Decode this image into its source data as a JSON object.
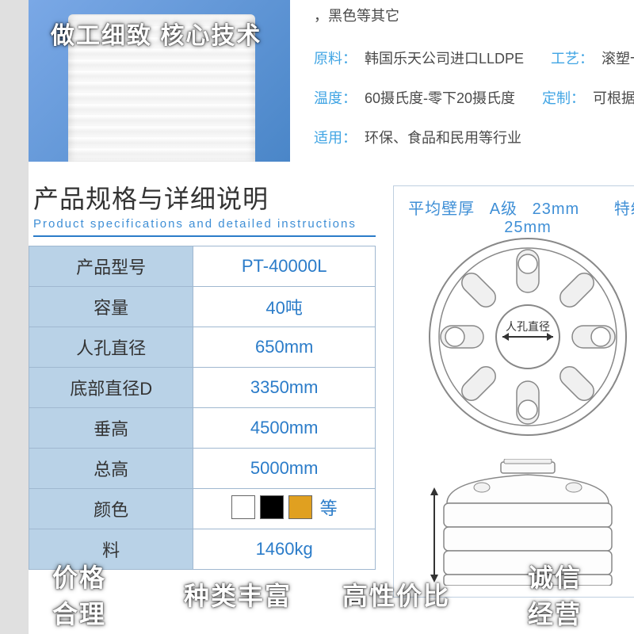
{
  "header_slogan": "做工细致 核心技术",
  "attributes": {
    "row0_suffix": "，黑色等其它",
    "material_label": "原料：",
    "material_value": "韩国乐天公司进口LLDPE",
    "process_label": "工艺：",
    "process_value": "滚塑一次成型，无缝无焊",
    "temp_label": "温度：",
    "temp_value": "60摄氏度-零下20摄氏度",
    "custom_label": "定制：",
    "custom_value": "可根据客户需求量身定制",
    "apply_label": "适用：",
    "apply_value": "环保、食品和民用等行业"
  },
  "section": {
    "title_cn": "产品规格与详细说明",
    "title_en": "Product specifications and detailed instructions"
  },
  "specs": {
    "rows": [
      {
        "label": "产品型号",
        "value": "PT-40000L"
      },
      {
        "label": "容量",
        "value": "40吨"
      },
      {
        "label": "人孔直径",
        "value": "650mm"
      },
      {
        "label": "底部直径D",
        "value": "3350mm"
      },
      {
        "label": "垂高",
        "value": "4500mm"
      },
      {
        "label": "总高",
        "value": "5000mm"
      },
      {
        "label": "颜色",
        "value": "__COLOR__"
      },
      {
        "label": "料",
        "value": "1460kg"
      }
    ],
    "color_etc": "等",
    "swatches": [
      "#ffffff",
      "#000000",
      "#e0a020"
    ]
  },
  "diagram": {
    "header_prefix": "平均壁厚",
    "a_label": "A级",
    "a_value": "23mm",
    "t_label": "特级",
    "t_value": "25mm",
    "manhole_label": "人孔直径"
  },
  "footer": [
    {
      "l1": "价格",
      "l2": "合理"
    },
    {
      "l1": "种类丰富",
      "l2": ""
    },
    {
      "l1": "高性价比",
      "l2": ""
    },
    {
      "l1": "诚信",
      "l2": "经营"
    }
  ],
  "colors": {
    "brand_blue": "#2b7cc9",
    "light_blue": "#41a5e4",
    "table_header_bg": "#b9d2e7",
    "border": "#a0b8d0"
  }
}
